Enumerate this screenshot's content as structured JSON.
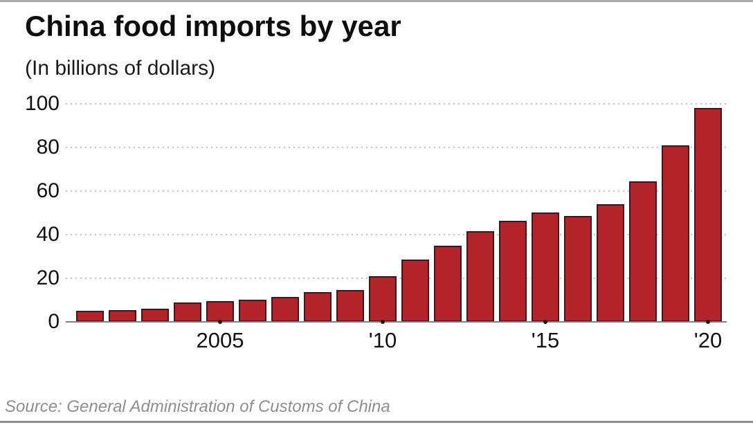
{
  "page": {
    "title": "China food imports by year",
    "subtitle": "(In billions of dollars)",
    "source": "Source: General Administration of Customs of China"
  },
  "colors": {
    "bar_fill": "#b2232a",
    "bar_stroke": "#46131a",
    "gridline": "#c4c4c4",
    "axis_line": "#7d7d7d",
    "tick_dot": "#1a1a1a",
    "label_text": "#111111",
    "source_text": "#8e8e8e",
    "top_border": "#a9a9a9",
    "bottom_border": "#8c8c8c"
  },
  "chart_data": {
    "type": "bar",
    "title": "China food imports by year",
    "subtitle": "(In billions of dollars)",
    "ylabel": "",
    "xlabel": "",
    "unit": "billions of dollars",
    "categories": [
      2001,
      2002,
      2003,
      2004,
      2005,
      2006,
      2007,
      2008,
      2009,
      2010,
      2011,
      2012,
      2013,
      2014,
      2015,
      2016,
      2017,
      2018,
      2019,
      2020
    ],
    "values": [
      5,
      5.5,
      6,
      9,
      9.5,
      10,
      11.5,
      13.5,
      14.5,
      21,
      28.5,
      35,
      41.5,
      46.5,
      50,
      48.5,
      54,
      64.5,
      81,
      98
    ],
    "ylim": [
      0,
      100
    ],
    "y_ticks": [
      0,
      20,
      40,
      60,
      80,
      100
    ],
    "x_ticks": [
      {
        "year": 2005,
        "label": "2005"
      },
      {
        "year": 2010,
        "label": "'10"
      },
      {
        "year": 2015,
        "label": "'15"
      },
      {
        "year": 2020,
        "label": "'20"
      }
    ],
    "grid": "horizontal-dotted",
    "legend": "none",
    "bar_color": "#b2232a",
    "source": "Source: General Administration of Customs of China"
  }
}
